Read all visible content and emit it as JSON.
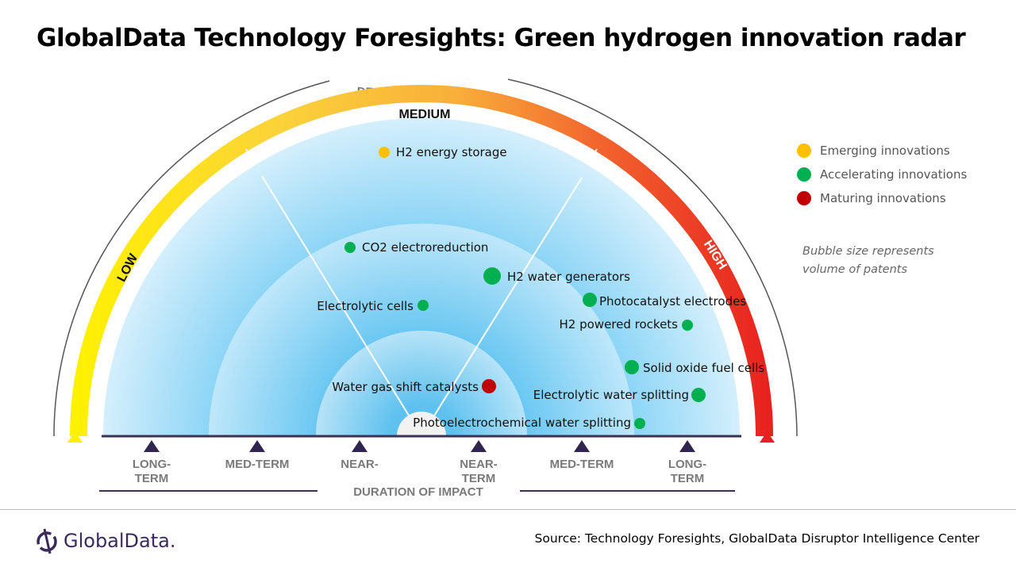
{
  "title": "GlobalData Technology Foresights: Green hydrogen innovation radar",
  "radar": {
    "degree_label": "DEGREE OF IMPACT",
    "impact_levels": {
      "low": "LOW",
      "medium": "MEDIUM",
      "high": "HIGH"
    },
    "duration_label": "DURATION OF IMPACT",
    "duration_ticks": [
      {
        "line1": "LONG-",
        "line2": "TERM"
      },
      {
        "line1": "MED-TERM",
        "line2": ""
      },
      {
        "line1": "NEAR-",
        "line2": ""
      },
      {
        "line1": "NEAR-",
        "line2": "TERM"
      },
      {
        "line1": "MED-TERM",
        "line2": ""
      },
      {
        "line1": "LONG-",
        "line2": "TERM"
      }
    ],
    "innovations": [
      {
        "name": "H2 energy storage",
        "category": "Emerging innovations"
      },
      {
        "name": "CO2 electroreduction",
        "category": "Accelerating innovations"
      },
      {
        "name": "H2 water generators",
        "category": "Accelerating innovations"
      },
      {
        "name": "Electrolytic cells",
        "category": "Accelerating innovations"
      },
      {
        "name": "Photocatalyst electrodes",
        "category": "Accelerating innovations"
      },
      {
        "name": "H2 powered rockets",
        "category": "Accelerating innovations"
      },
      {
        "name": "Solid oxide fuel cells",
        "category": "Accelerating innovations"
      },
      {
        "name": "Water gas shift catalysts",
        "category": "Maturing innovations"
      },
      {
        "name": "Electrolytic water splitting",
        "category": "Accelerating innovations"
      },
      {
        "name": "Photoelectrochemical water splitting",
        "category": "Accelerating innovations"
      }
    ]
  },
  "legend": [
    {
      "label": "Emerging innovations",
      "color": "#ffc000"
    },
    {
      "label": "Accelerating innovations",
      "color": "#00b050"
    },
    {
      "label": "Maturing innovations",
      "color": "#c00000"
    }
  ],
  "note_line1": "Bubble size represents",
  "note_line2": "volume of patents",
  "source": "Source: Technology Foresights, GlobalData Disruptor Intelligence Center",
  "logo_text": "GlobalData."
}
